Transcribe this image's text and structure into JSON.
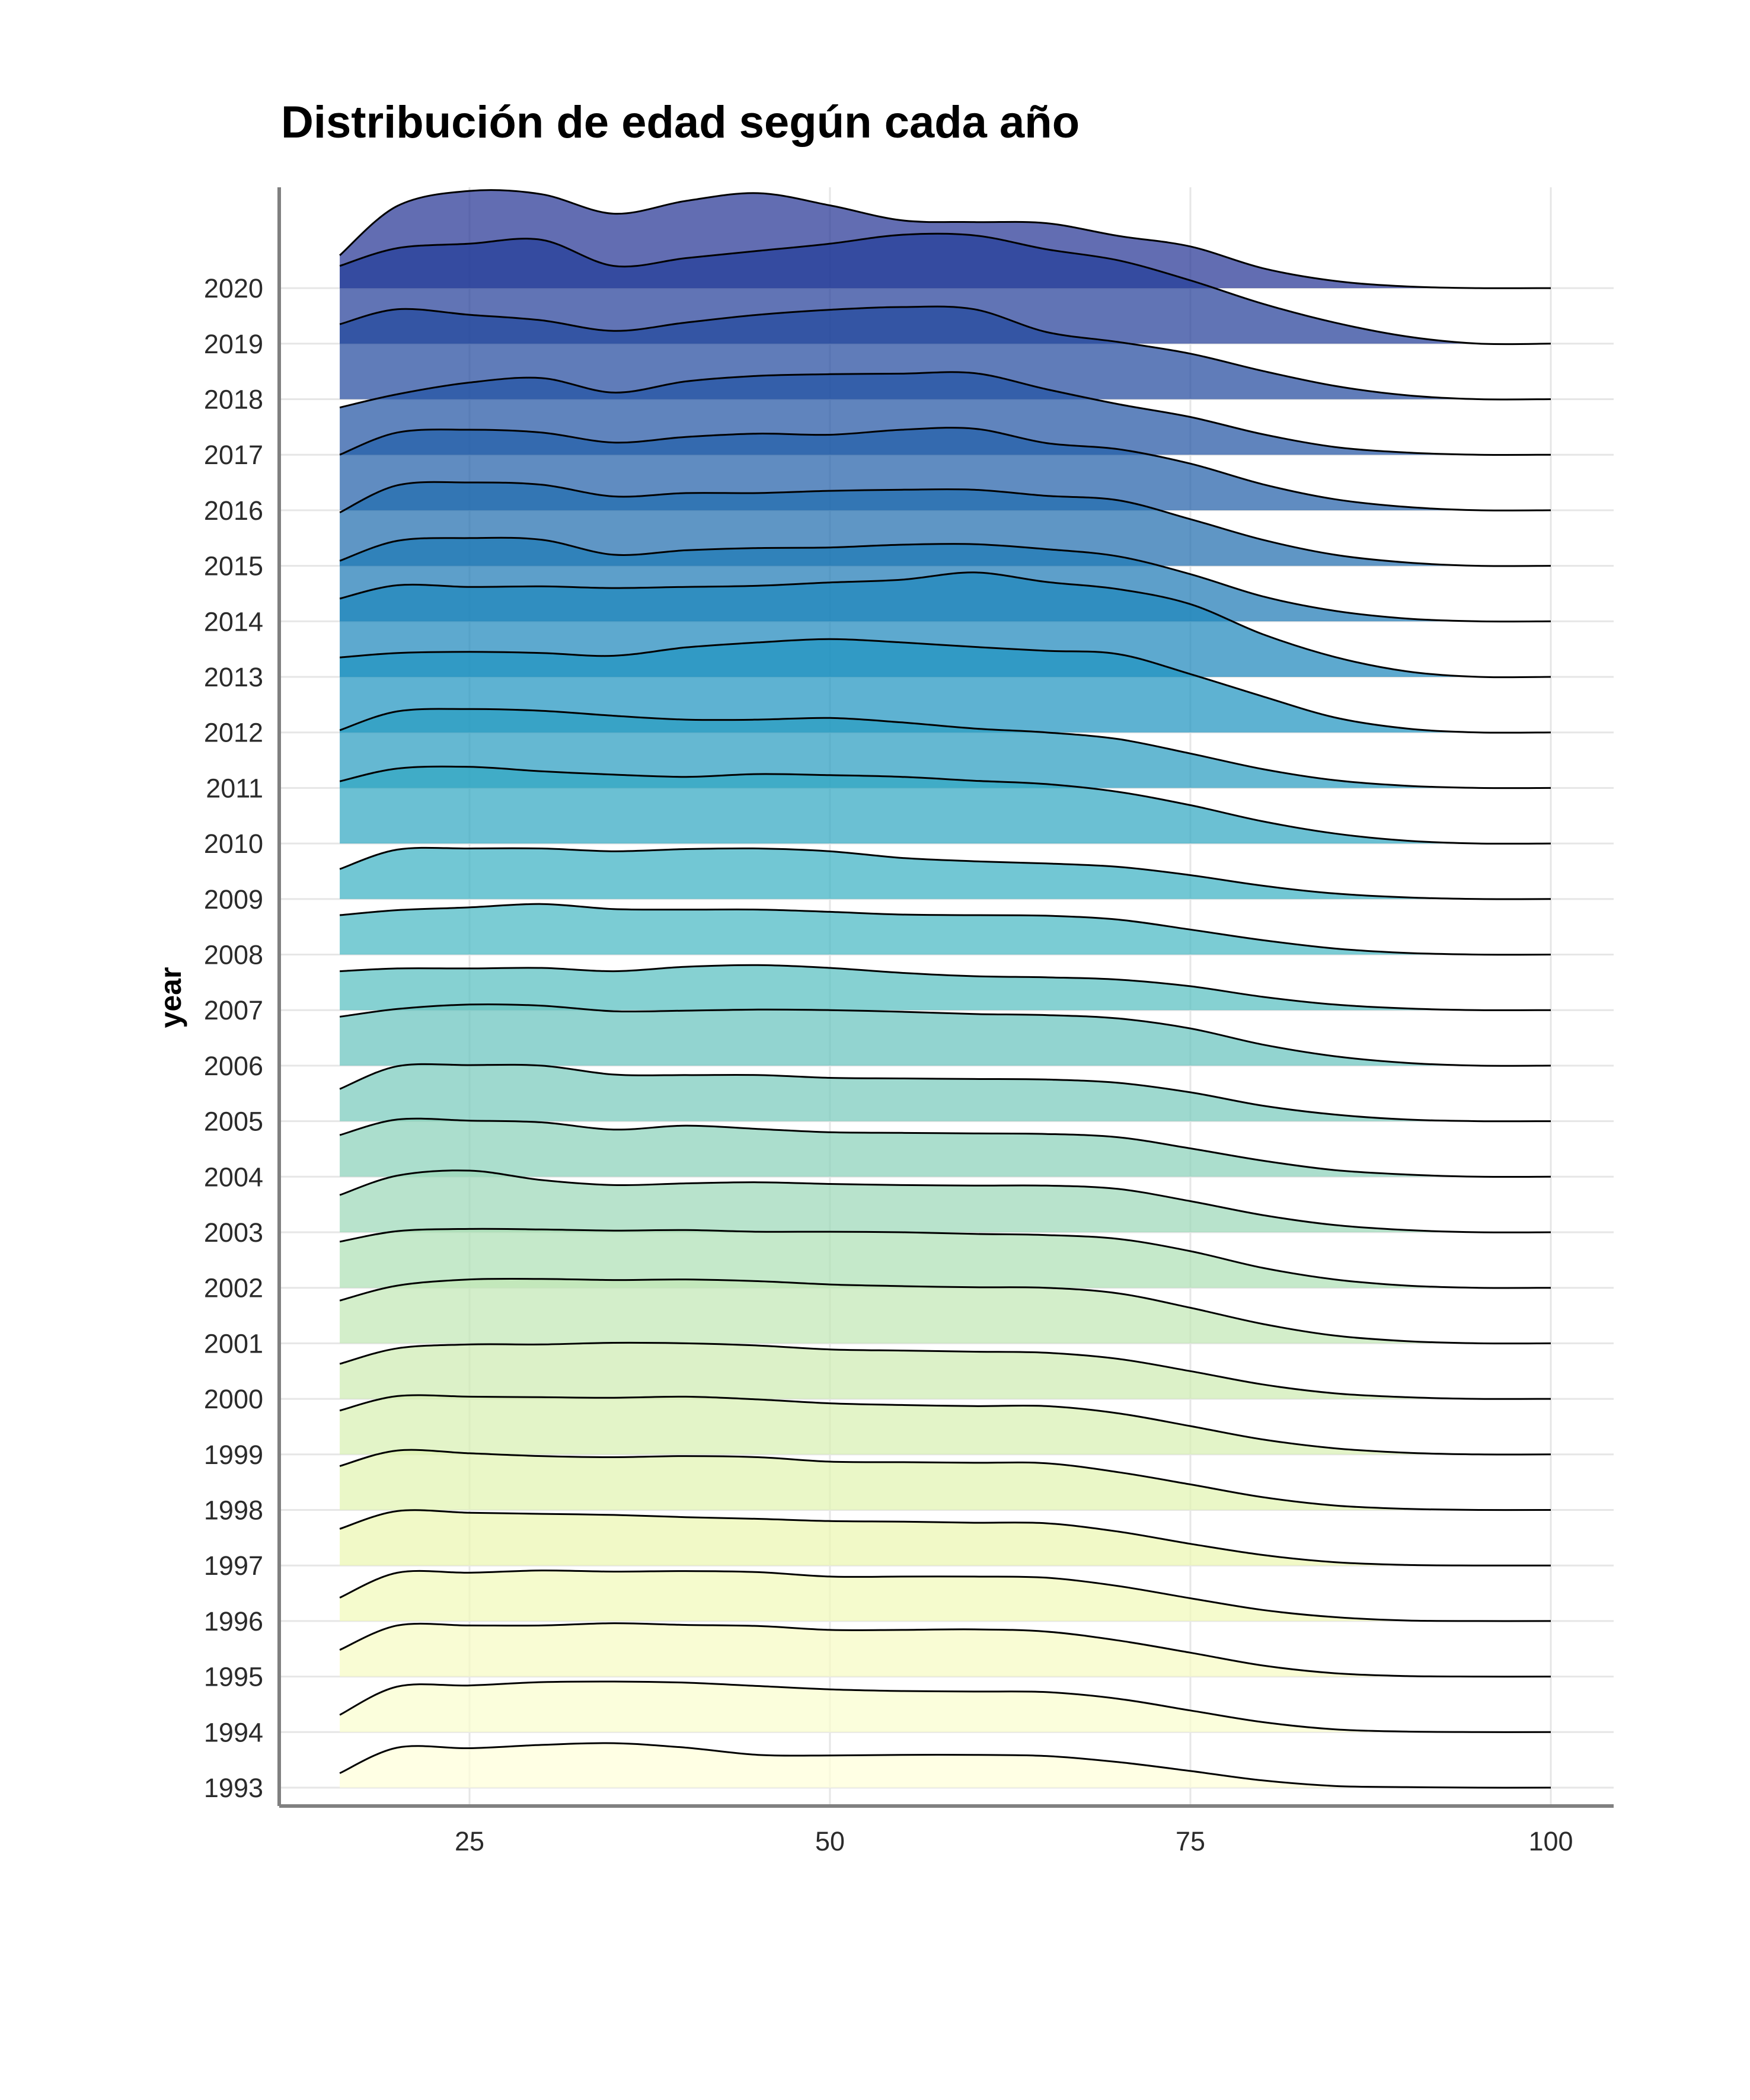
{
  "chart_data": {
    "type": "ridgeline",
    "title": "Distribución de edad según cada año",
    "xlabel": "",
    "ylabel": "year",
    "xlim": [
      16,
      100
    ],
    "xticks": [
      25,
      50,
      75,
      100
    ],
    "grid": true,
    "color_scale": [
      "#ffffd9",
      "#edf8b1",
      "#c7e9b4",
      "#7fcdbb",
      "#41b6c4",
      "#1d91c0",
      "#225ea8",
      "#253494"
    ],
    "overlap": 2.0,
    "years": [
      "1993",
      "1994",
      "1995",
      "1996",
      "1997",
      "1998",
      "1999",
      "2000",
      "2001",
      "2002",
      "2003",
      "2004",
      "2005",
      "2006",
      "2007",
      "2008",
      "2009",
      "2010",
      "2011",
      "2012",
      "2013",
      "2014",
      "2015",
      "2016",
      "2017",
      "2018",
      "2019",
      "2020"
    ],
    "x": [
      16,
      20,
      25,
      30,
      35,
      40,
      45,
      50,
      55,
      60,
      65,
      70,
      75,
      80,
      85,
      90,
      95,
      100
    ],
    "density": [
      [
        0.26,
        0.72,
        0.71,
        0.77,
        0.8,
        0.72,
        0.59,
        0.58,
        0.59,
        0.59,
        0.57,
        0.46,
        0.3,
        0.13,
        0.03,
        0.01,
        0.0,
        0.0
      ],
      [
        0.31,
        0.82,
        0.84,
        0.9,
        0.91,
        0.89,
        0.83,
        0.77,
        0.74,
        0.73,
        0.72,
        0.6,
        0.39,
        0.18,
        0.05,
        0.01,
        0.0,
        0.0
      ],
      [
        0.48,
        0.92,
        0.92,
        0.92,
        0.96,
        0.93,
        0.91,
        0.84,
        0.84,
        0.85,
        0.81,
        0.65,
        0.43,
        0.2,
        0.06,
        0.01,
        0.0,
        0.0
      ],
      [
        0.42,
        0.87,
        0.87,
        0.91,
        0.89,
        0.9,
        0.88,
        0.8,
        0.8,
        0.8,
        0.78,
        0.63,
        0.41,
        0.2,
        0.07,
        0.01,
        0.0,
        0.0
      ],
      [
        0.66,
        0.98,
        0.95,
        0.93,
        0.91,
        0.87,
        0.84,
        0.8,
        0.79,
        0.77,
        0.76,
        0.61,
        0.39,
        0.19,
        0.06,
        0.01,
        0.0,
        0.0
      ],
      [
        0.79,
        1.07,
        1.02,
        0.97,
        0.95,
        0.97,
        0.95,
        0.87,
        0.86,
        0.85,
        0.84,
        0.68,
        0.46,
        0.23,
        0.08,
        0.02,
        0.0,
        0.0
      ],
      [
        0.79,
        1.05,
        1.04,
        1.03,
        1.02,
        1.04,
        0.99,
        0.92,
        0.89,
        0.87,
        0.87,
        0.74,
        0.51,
        0.27,
        0.11,
        0.03,
        0.0,
        0.0
      ],
      [
        0.63,
        0.91,
        0.98,
        0.98,
        1.01,
        1.0,
        0.96,
        0.89,
        0.87,
        0.85,
        0.83,
        0.72,
        0.5,
        0.26,
        0.1,
        0.03,
        0.0,
        0.0
      ],
      [
        0.77,
        1.04,
        1.15,
        1.16,
        1.14,
        1.15,
        1.12,
        1.06,
        1.03,
        1.01,
        1.0,
        0.9,
        0.64,
        0.35,
        0.14,
        0.04,
        0.0,
        0.0
      ],
      [
        0.83,
        1.02,
        1.06,
        1.05,
        1.03,
        1.04,
        1.01,
        1.01,
        1.0,
        0.97,
        0.95,
        0.88,
        0.66,
        0.36,
        0.15,
        0.04,
        0.0,
        0.0
      ],
      [
        0.67,
        1.02,
        1.11,
        0.94,
        0.85,
        0.88,
        0.9,
        0.87,
        0.85,
        0.84,
        0.84,
        0.78,
        0.56,
        0.31,
        0.13,
        0.04,
        0.0,
        0.0
      ],
      [
        0.75,
        1.03,
        1.01,
        0.98,
        0.85,
        0.92,
        0.86,
        0.8,
        0.79,
        0.78,
        0.77,
        0.71,
        0.51,
        0.29,
        0.12,
        0.04,
        0.0,
        0.0
      ],
      [
        0.58,
        0.99,
        1.01,
        1.0,
        0.84,
        0.83,
        0.83,
        0.78,
        0.77,
        0.76,
        0.75,
        0.69,
        0.52,
        0.28,
        0.12,
        0.03,
        0.0,
        0.0
      ],
      [
        0.88,
        1.02,
        1.1,
        1.08,
        0.98,
        0.99,
        1.01,
        1.0,
        0.97,
        0.93,
        0.91,
        0.85,
        0.67,
        0.38,
        0.17,
        0.05,
        0.0,
        0.0
      ],
      [
        0.7,
        0.75,
        0.75,
        0.76,
        0.7,
        0.78,
        0.81,
        0.76,
        0.67,
        0.61,
        0.59,
        0.55,
        0.43,
        0.24,
        0.1,
        0.03,
        0.0,
        0.0
      ],
      [
        0.71,
        0.8,
        0.85,
        0.91,
        0.82,
        0.81,
        0.81,
        0.77,
        0.72,
        0.71,
        0.7,
        0.63,
        0.45,
        0.26,
        0.11,
        0.03,
        0.0,
        0.0
      ],
      [
        0.54,
        0.89,
        0.91,
        0.91,
        0.86,
        0.9,
        0.91,
        0.86,
        0.74,
        0.68,
        0.64,
        0.58,
        0.43,
        0.24,
        0.1,
        0.03,
        0.0,
        0.0
      ],
      [
        1.12,
        1.35,
        1.38,
        1.3,
        1.24,
        1.2,
        1.25,
        1.23,
        1.2,
        1.13,
        1.07,
        0.93,
        0.69,
        0.4,
        0.18,
        0.05,
        0.0,
        0.0
      ],
      [
        1.04,
        1.38,
        1.42,
        1.39,
        1.3,
        1.23,
        1.23,
        1.26,
        1.18,
        1.07,
        1.0,
        0.88,
        0.62,
        0.34,
        0.14,
        0.04,
        0.0,
        0.0
      ],
      [
        1.35,
        1.43,
        1.45,
        1.43,
        1.38,
        1.53,
        1.62,
        1.68,
        1.62,
        1.54,
        1.47,
        1.41,
        1.05,
        0.65,
        0.27,
        0.07,
        0.0,
        0.0
      ],
      [
        1.41,
        1.65,
        1.62,
        1.63,
        1.6,
        1.62,
        1.64,
        1.7,
        1.75,
        1.88,
        1.71,
        1.58,
        1.31,
        0.77,
        0.36,
        0.1,
        0.0,
        0.0
      ],
      [
        1.09,
        1.45,
        1.5,
        1.47,
        1.2,
        1.28,
        1.32,
        1.33,
        1.38,
        1.39,
        1.3,
        1.17,
        0.85,
        0.45,
        0.19,
        0.05,
        0.0,
        0.0
      ],
      [
        0.96,
        1.45,
        1.5,
        1.46,
        1.25,
        1.31,
        1.31,
        1.35,
        1.37,
        1.37,
        1.26,
        1.18,
        0.84,
        0.47,
        0.2,
        0.06,
        0.0,
        0.0
      ],
      [
        1.0,
        1.4,
        1.45,
        1.4,
        1.22,
        1.32,
        1.38,
        1.36,
        1.45,
        1.47,
        1.21,
        1.1,
        0.84,
        0.47,
        0.2,
        0.06,
        0.0,
        0.0
      ],
      [
        0.85,
        1.09,
        1.3,
        1.38,
        1.12,
        1.32,
        1.42,
        1.45,
        1.46,
        1.47,
        1.18,
        0.91,
        0.68,
        0.37,
        0.14,
        0.04,
        0.0,
        0.0
      ],
      [
        1.35,
        1.62,
        1.52,
        1.42,
        1.23,
        1.38,
        1.52,
        1.61,
        1.66,
        1.62,
        1.21,
        1.03,
        0.82,
        0.51,
        0.24,
        0.07,
        0.0,
        0.0
      ],
      [
        1.4,
        1.72,
        1.8,
        1.87,
        1.4,
        1.54,
        1.67,
        1.8,
        1.96,
        1.95,
        1.7,
        1.5,
        1.14,
        0.72,
        0.38,
        0.13,
        0.0,
        0.0
      ],
      [
        0.59,
        1.48,
        1.75,
        1.69,
        1.34,
        1.57,
        1.71,
        1.49,
        1.22,
        1.19,
        1.17,
        0.94,
        0.75,
        0.36,
        0.13,
        0.03,
        0.0,
        0.0
      ]
    ]
  }
}
